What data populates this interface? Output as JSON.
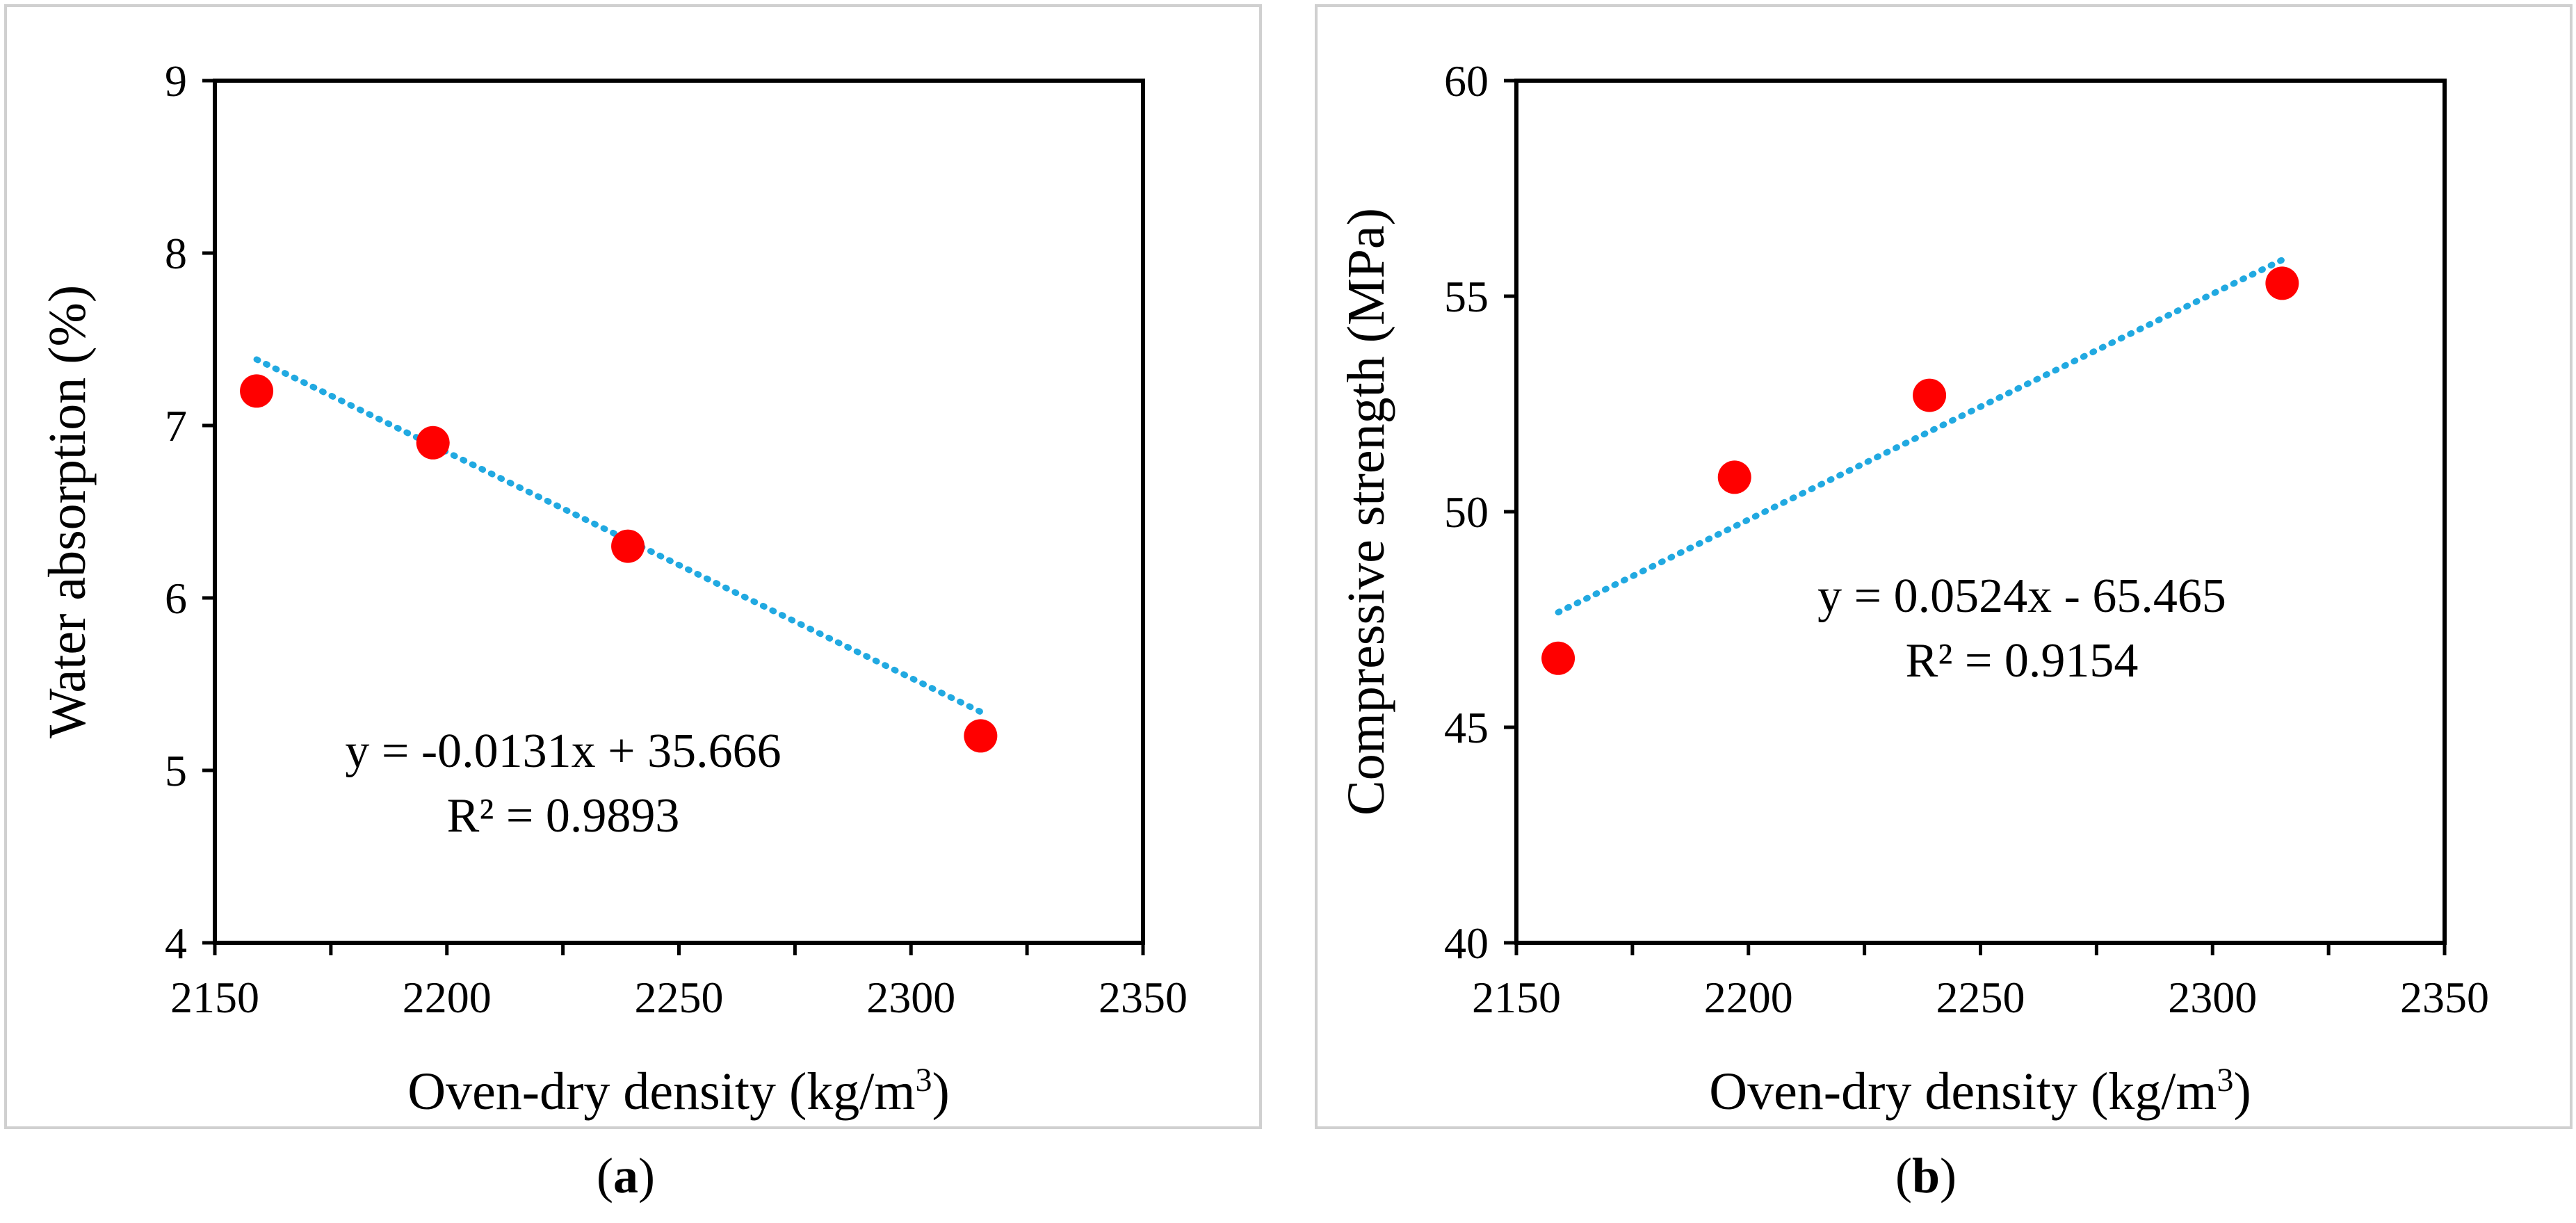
{
  "chart_data": [
    {
      "type": "scatter",
      "panel": "a",
      "xlabel": "Oven-dry density (kg/m",
      "xlabel_sup": "3",
      "xlabel_end": ")",
      "ylabel": "Water absorption (%)",
      "xlim": [
        2150,
        2350
      ],
      "ylim": [
        4,
        9
      ],
      "xticks": [
        2150,
        2200,
        2250,
        2300,
        2350
      ],
      "yticks": [
        4,
        5,
        6,
        7,
        8,
        9
      ],
      "grid": false,
      "points": [
        {
          "x": 2159,
          "y": 7.2
        },
        {
          "x": 2197,
          "y": 6.9
        },
        {
          "x": 2239,
          "y": 6.3
        },
        {
          "x": 2315,
          "y": 5.2
        }
      ],
      "trendline": {
        "slope": -0.0131,
        "intercept": 35.666,
        "x_range": [
          2159,
          2315
        ]
      },
      "equation": "y = -0.0131x + 35.666",
      "r2": "R² = 0.9893",
      "caption_open": "(",
      "caption_letter": "a",
      "caption_close": ")",
      "point_color": "#ff0000",
      "trend_color": "#21a9e1"
    },
    {
      "type": "scatter",
      "panel": "b",
      "xlabel": "Oven-dry density (kg/m",
      "xlabel_sup": "3",
      "xlabel_end": ")",
      "ylabel": "Compressive strength (MPa)",
      "xlim": [
        2150,
        2350
      ],
      "ylim": [
        40,
        60
      ],
      "xticks": [
        2150,
        2200,
        2250,
        2300,
        2350
      ],
      "yticks": [
        40,
        45,
        50,
        55,
        60
      ],
      "grid": false,
      "points": [
        {
          "x": 2159,
          "y": 46.6
        },
        {
          "x": 2197,
          "y": 50.8
        },
        {
          "x": 2239,
          "y": 52.7
        },
        {
          "x": 2315,
          "y": 55.3
        }
      ],
      "trendline": {
        "slope": 0.0524,
        "intercept": -65.465,
        "x_range": [
          2159,
          2315
        ]
      },
      "equation": "y = 0.0524x - 65.465",
      "r2": "R² = 0.9154",
      "caption_open": "(",
      "caption_letter": "b",
      "caption_close": ")",
      "point_color": "#ff0000",
      "trend_color": "#21a9e1"
    }
  ]
}
